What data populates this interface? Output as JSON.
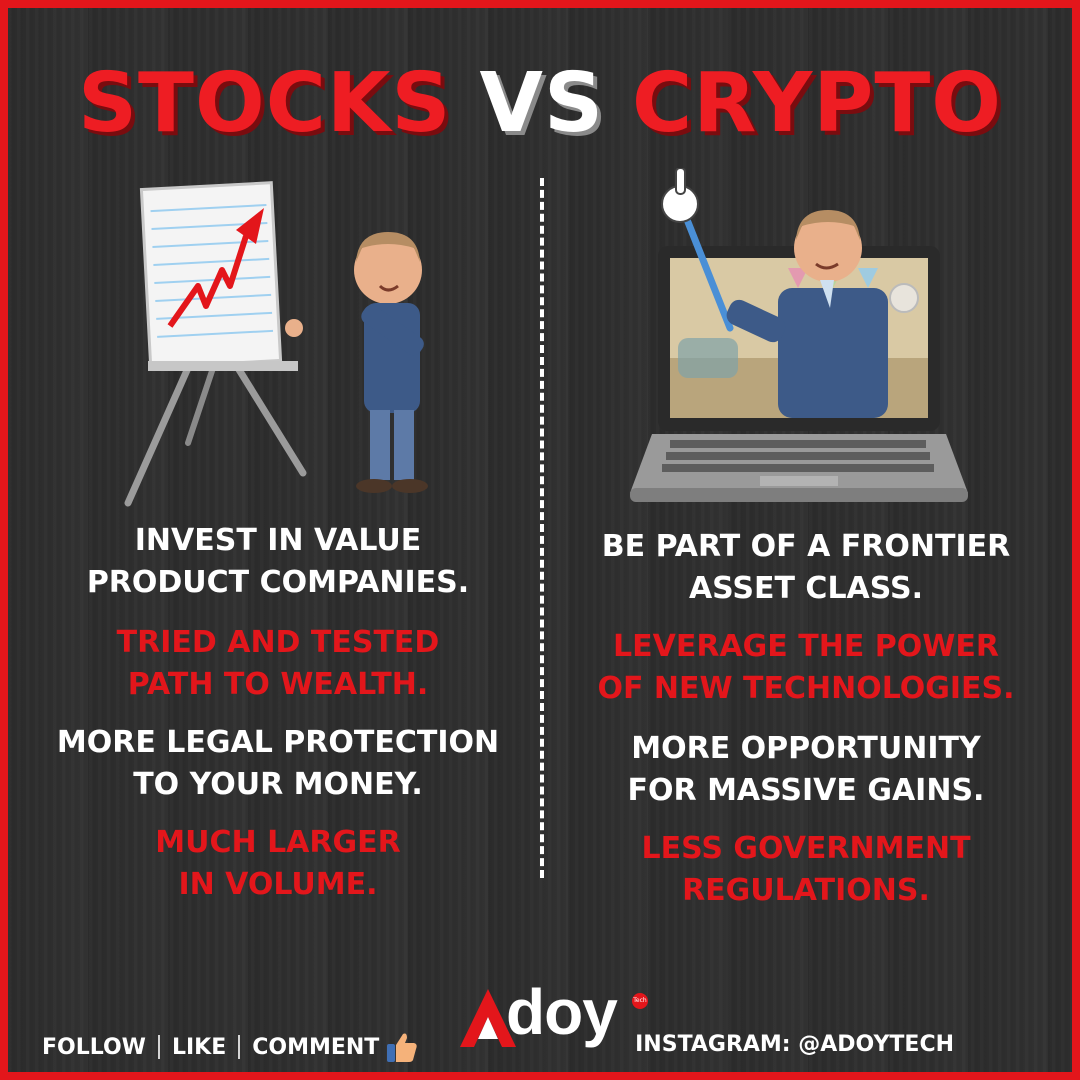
{
  "title": {
    "left": "STOCKS",
    "middle": "VS",
    "right": "CRYPTO"
  },
  "stocks": {
    "point1": [
      "INVEST IN VALUE",
      "PRODUCT COMPANIES."
    ],
    "point2": [
      "TRIED AND TESTED",
      "PATH TO WEALTH."
    ],
    "point3": [
      "MORE LEGAL PROTECTION",
      "TO YOUR MONEY."
    ],
    "point4": [
      "MUCH LARGER",
      "IN VOLUME."
    ]
  },
  "crypto": {
    "point1": [
      "BE PART OF A FRONTIER",
      "ASSET CLASS."
    ],
    "point2": [
      "LEVERAGE THE POWER",
      "OF NEW TECHNOLOGIES."
    ],
    "point3": [
      "MORE OPPORTUNITY",
      "FOR MASSIVE GAINS."
    ],
    "point4": [
      "LESS GOVERNMENT",
      "REGULATIONS."
    ]
  },
  "footer": {
    "follow": "FOLLOW",
    "like": "LIKE",
    "comment": "COMMENT",
    "thumb_icon": "thumbs-up-icon",
    "instagram": "INSTAGRAM: @ADOYTECH"
  },
  "logo": {
    "word": "doy",
    "badge": "Tech"
  },
  "colors": {
    "accent": "#e3161b",
    "background": "#2e2e2e",
    "text": "#ffffff"
  }
}
